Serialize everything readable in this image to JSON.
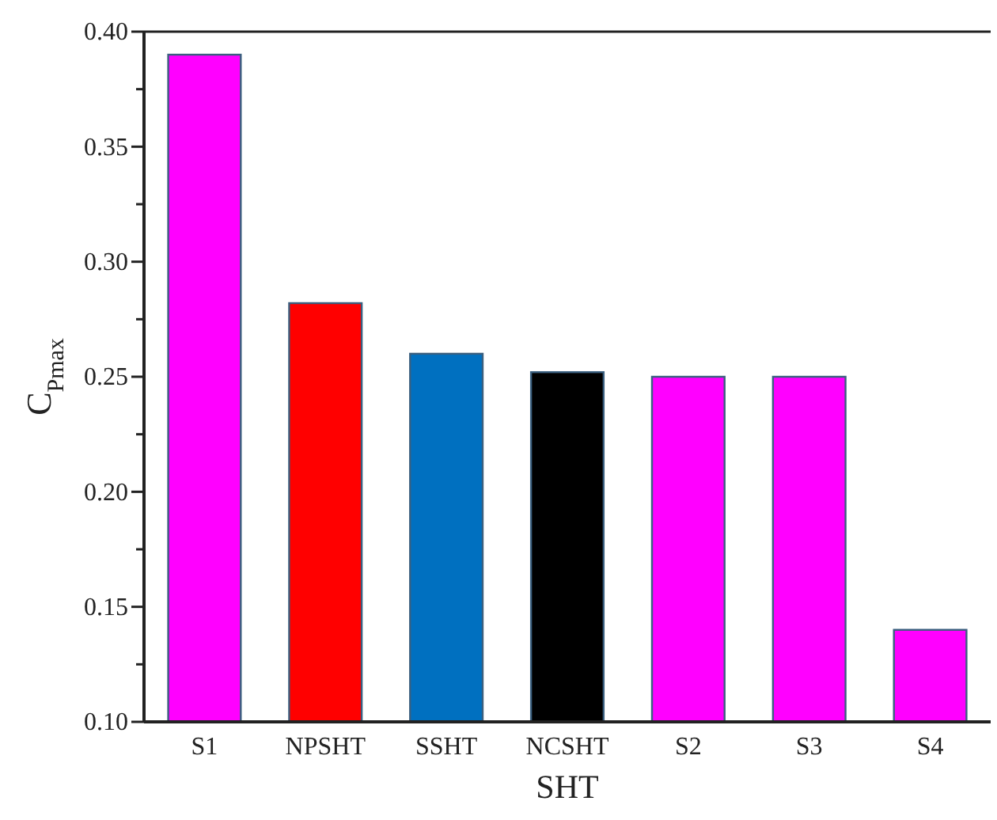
{
  "chart_data": {
    "type": "bar",
    "categories": [
      "S1",
      "NPSHT",
      "SSHT",
      "NCSHT",
      "S2",
      "S3",
      "S4"
    ],
    "values": [
      0.39,
      0.282,
      0.26,
      0.252,
      0.25,
      0.25,
      0.14
    ],
    "colors": [
      "#ff00ff",
      "#ff0000",
      "#0070c0",
      "#000000",
      "#ff00ff",
      "#ff00ff",
      "#ff00ff"
    ],
    "xlabel": "SHT",
    "ylabel": "C$_{Pmax}$",
    "ylim": [
      0.1,
      0.4
    ],
    "yticks": [
      {
        "value": 0.1,
        "label": "0.10"
      },
      {
        "value": 0.125,
        "label": null
      },
      0.15,
      {
        "value": 0.175,
        "label": null
      },
      {
        "value": 0.2,
        "label": "0.20"
      },
      {
        "value": 0.225,
        "label": null
      },
      0.25,
      {
        "value": 0.275,
        "label": null
      },
      {
        "value": 0.3,
        "label": "0.30"
      },
      {
        "value": 0.325,
        "label": null
      },
      0.35,
      {
        "value": 0.375,
        "label": null
      },
      {
        "value": 0.4,
        "label": "0.40"
      }
    ],
    "grid": false
  }
}
